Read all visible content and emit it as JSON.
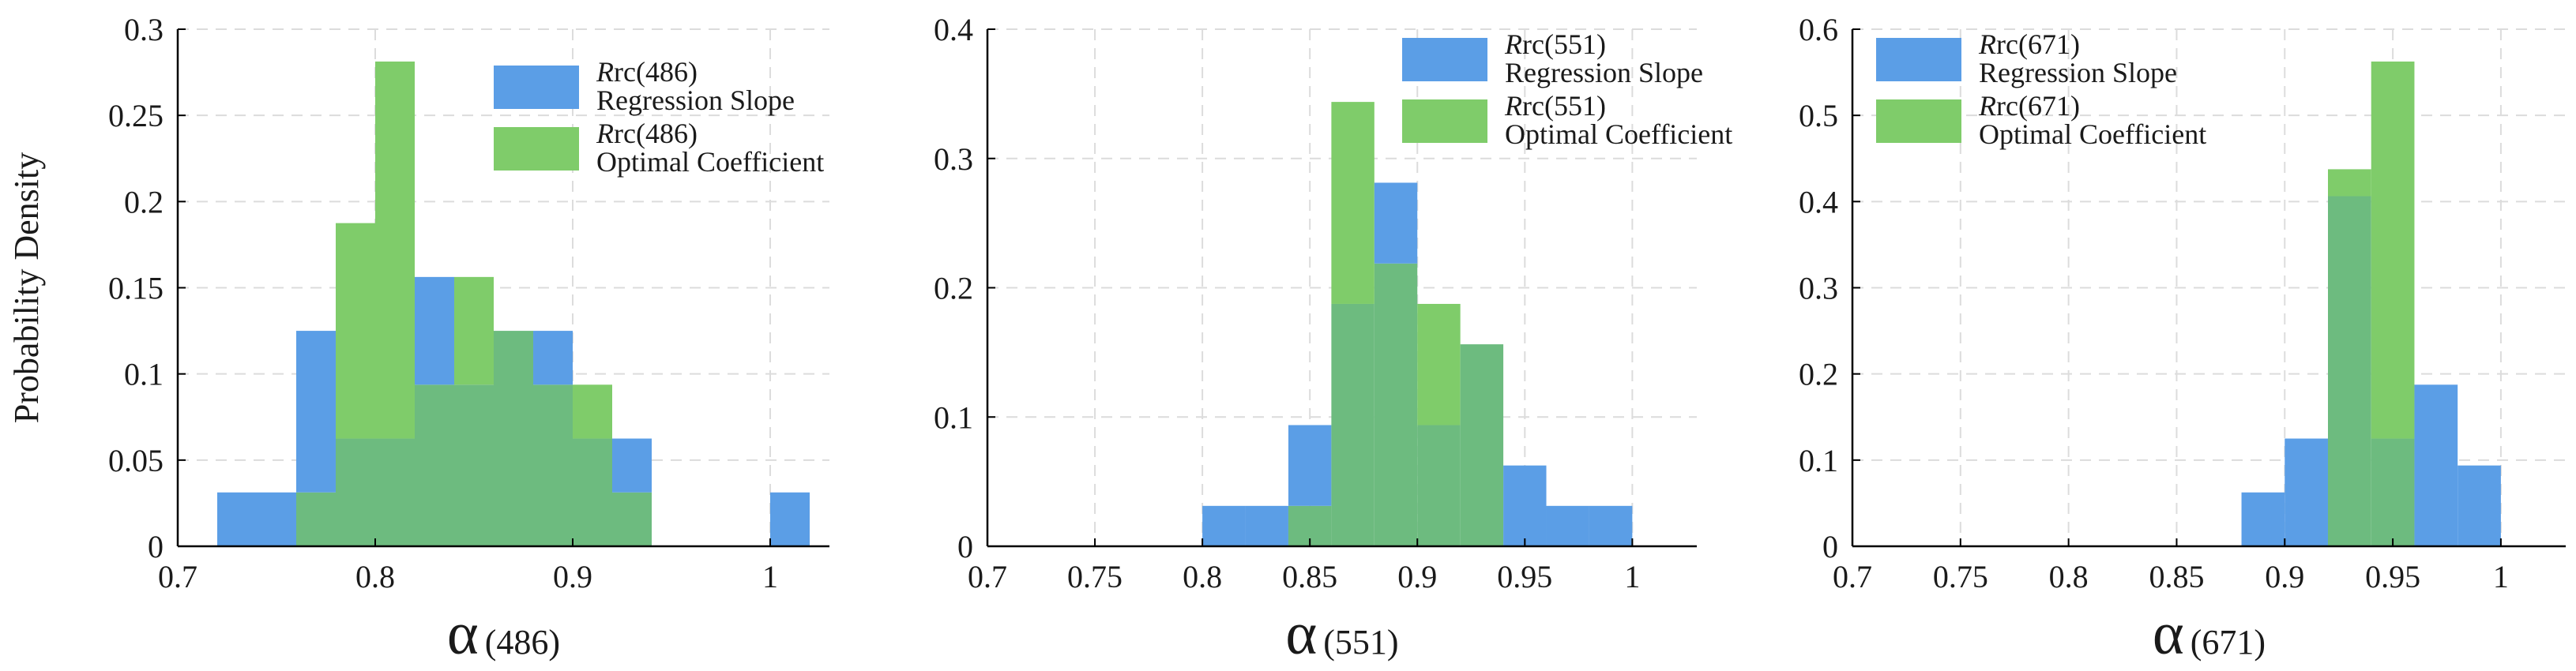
{
  "colors": {
    "regression": "#5b9ee6",
    "optimal": "#7fcc6a",
    "overlap": "#6dbb7f",
    "grid": "#dcdcdc",
    "axis": "#000000"
  },
  "chart_data": [
    {
      "type": "histogram",
      "ylabel": "Probability Density",
      "xlabel_symbol": "α",
      "xlabel_suffix": "(486)",
      "xlim": [
        0.7,
        1.03
      ],
      "ylim": [
        0,
        0.3
      ],
      "xticks": [
        0.7,
        0.8,
        0.9,
        1.0
      ],
      "xtick_labels": [
        "0.7",
        "0.8",
        "0.9",
        "1"
      ],
      "yticks": [
        0,
        0.05,
        0.1,
        0.15,
        0.2,
        0.25,
        0.3
      ],
      "ytick_labels": [
        "0",
        "0.05",
        "0.1",
        "0.15",
        "0.2",
        "0.25",
        "0.3"
      ],
      "legend_position": "top-right",
      "series": [
        {
          "name_italic": "R",
          "name_rest": "rc(486)",
          "name_line2": "Regression Slope",
          "color_key": "regression",
          "bins": [
            [
              0.72,
              0.76,
              0.03125
            ],
            [
              0.76,
              0.78,
              0.125
            ],
            [
              0.78,
              0.8,
              0.0625
            ],
            [
              0.8,
              0.82,
              0.0625
            ],
            [
              0.82,
              0.84,
              0.15625
            ],
            [
              0.84,
              0.86,
              0.09375
            ],
            [
              0.86,
              0.88,
              0.125
            ],
            [
              0.88,
              0.9,
              0.125
            ],
            [
              0.9,
              0.92,
              0.0625
            ],
            [
              0.92,
              0.94,
              0.0625
            ],
            [
              1.0,
              1.02,
              0.03125
            ]
          ]
        },
        {
          "name_italic": "R",
          "name_rest": "rc(486)",
          "name_line2": "Optimal Coefficient",
          "color_key": "optimal",
          "bins": [
            [
              0.76,
              0.78,
              0.03125
            ],
            [
              0.78,
              0.8,
              0.1875
            ],
            [
              0.8,
              0.82,
              0.28125
            ],
            [
              0.82,
              0.84,
              0.09375
            ],
            [
              0.84,
              0.86,
              0.15625
            ],
            [
              0.86,
              0.88,
              0.125
            ],
            [
              0.88,
              0.9,
              0.09375
            ],
            [
              0.9,
              0.92,
              0.09375
            ],
            [
              0.92,
              0.94,
              0.03125
            ]
          ]
        }
      ]
    },
    {
      "type": "histogram",
      "xlabel_symbol": "α",
      "xlabel_suffix": "(551)",
      "xlim": [
        0.7,
        1.03
      ],
      "ylim": [
        0,
        0.4
      ],
      "xticks": [
        0.7,
        0.75,
        0.8,
        0.85,
        0.9,
        0.95,
        1.0
      ],
      "xtick_labels": [
        "0.7",
        "0.75",
        "0.8",
        "0.85",
        "0.9",
        "0.95",
        "1"
      ],
      "yticks": [
        0,
        0.1,
        0.2,
        0.3,
        0.4
      ],
      "ytick_labels": [
        "0",
        "0.1",
        "0.2",
        "0.3",
        "0.4"
      ],
      "legend_position": "top-right",
      "series": [
        {
          "name_italic": "R",
          "name_rest": "rc(551)",
          "name_line2": "Regression Slope",
          "color_key": "regression",
          "bins": [
            [
              0.8,
              0.84,
              0.03125
            ],
            [
              0.84,
              0.86,
              0.09375
            ],
            [
              0.86,
              0.88,
              0.1875
            ],
            [
              0.88,
              0.9,
              0.28125
            ],
            [
              0.9,
              0.92,
              0.09375
            ],
            [
              0.92,
              0.94,
              0.15625
            ],
            [
              0.94,
              0.96,
              0.0625
            ],
            [
              0.96,
              1.0,
              0.03125
            ]
          ]
        },
        {
          "name_italic": "R",
          "name_rest": "rc(551)",
          "name_line2": "Optimal Coefficient",
          "color_key": "optimal",
          "bins": [
            [
              0.84,
              0.86,
              0.03125
            ],
            [
              0.86,
              0.88,
              0.34375
            ],
            [
              0.88,
              0.9,
              0.21875
            ],
            [
              0.9,
              0.92,
              0.1875
            ],
            [
              0.92,
              0.94,
              0.15625
            ]
          ]
        }
      ]
    },
    {
      "type": "histogram",
      "xlabel_symbol": "α",
      "xlabel_suffix": "(671)",
      "xlim": [
        0.7,
        1.03
      ],
      "ylim": [
        0,
        0.6
      ],
      "xticks": [
        0.7,
        0.75,
        0.8,
        0.85,
        0.9,
        0.95,
        1.0
      ],
      "xtick_labels": [
        "0.7",
        "0.75",
        "0.8",
        "0.85",
        "0.9",
        "0.95",
        "1"
      ],
      "yticks": [
        0,
        0.1,
        0.2,
        0.3,
        0.4,
        0.5,
        0.6
      ],
      "ytick_labels": [
        "0",
        "0.1",
        "0.2",
        "0.3",
        "0.4",
        "0.5",
        "0.6"
      ],
      "legend_position": "top-left",
      "series": [
        {
          "name_italic": "R",
          "name_rest": "rc(671)",
          "name_line2": "Regression Slope",
          "color_key": "regression",
          "bins": [
            [
              0.88,
              0.9,
              0.0625
            ],
            [
              0.9,
              0.92,
              0.125
            ],
            [
              0.92,
              0.94,
              0.40625
            ],
            [
              0.94,
              0.96,
              0.125
            ],
            [
              0.96,
              0.98,
              0.1875
            ],
            [
              0.98,
              1.0,
              0.09375
            ]
          ]
        },
        {
          "name_italic": "R",
          "name_rest": "rc(671)",
          "name_line2": "Optimal Coefficient",
          "color_key": "optimal",
          "bins": [
            [
              0.92,
              0.94,
              0.4375
            ],
            [
              0.94,
              0.96,
              0.5625
            ]
          ]
        }
      ]
    }
  ]
}
